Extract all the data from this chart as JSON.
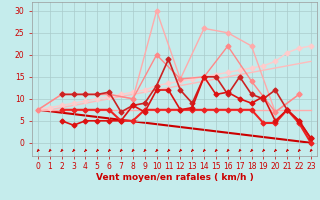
{
  "xlabel": "Vent moyen/en rafales ( km/h )",
  "background_color": "#c5ecec",
  "grid_color": "#aacccc",
  "x_ticks": [
    0,
    1,
    2,
    3,
    4,
    5,
    6,
    7,
    8,
    9,
    10,
    11,
    12,
    13,
    14,
    15,
    16,
    17,
    18,
    19,
    20,
    21,
    22,
    23
  ],
  "ylim": [
    -3,
    32
  ],
  "xlim": [
    -0.5,
    23.5
  ],
  "yticks": [
    0,
    5,
    10,
    15,
    20,
    25,
    30
  ],
  "lines": [
    {
      "x": [
        0,
        1,
        2,
        3,
        4,
        5,
        6,
        7,
        8,
        9,
        10,
        11,
        12,
        13,
        14,
        15,
        16,
        17,
        18,
        19,
        20,
        21,
        22,
        23
      ],
      "y": [
        7.5,
        7.5,
        7.5,
        7.5,
        7.5,
        7.5,
        7.5,
        7.5,
        7.5,
        7.5,
        7.5,
        7.5,
        7.5,
        7.5,
        7.5,
        7.5,
        7.5,
        7.5,
        7.5,
        7.5,
        7.5,
        7.5,
        7.5,
        7.5
      ],
      "color": "#ffaaaa",
      "linewidth": 1.0,
      "marker": null,
      "markersize": 0,
      "zorder": 2
    },
    {
      "x": [
        0,
        1,
        2,
        3,
        4,
        5,
        6,
        7,
        8,
        9,
        10,
        11,
        12,
        13,
        14,
        15,
        16,
        17,
        18,
        19,
        20,
        21,
        22,
        23
      ],
      "y": [
        7.5,
        7.5,
        8.0,
        8.5,
        9.0,
        9.5,
        10.0,
        10.5,
        11.0,
        11.5,
        12.0,
        12.5,
        13.0,
        13.5,
        14.0,
        14.5,
        15.0,
        15.5,
        16.0,
        16.5,
        17.0,
        17.5,
        18.0,
        18.5
      ],
      "color": "#ffbbbb",
      "linewidth": 1.0,
      "marker": null,
      "markersize": 0,
      "zorder": 2
    },
    {
      "x": [
        0,
        1,
        2,
        3,
        4,
        5,
        6,
        7,
        8,
        9,
        10,
        11,
        12,
        13,
        14,
        15,
        16,
        17,
        18,
        19,
        20,
        21,
        22,
        23
      ],
      "y": [
        7.5,
        8.0,
        8.5,
        9.0,
        9.5,
        10.0,
        10.5,
        11.0,
        11.5,
        12.0,
        13.0,
        13.5,
        14.0,
        14.5,
        15.0,
        15.5,
        16.0,
        16.5,
        17.0,
        17.5,
        18.5,
        20.5,
        21.5,
        22.0
      ],
      "color": "#ffcccc",
      "linewidth": 1.0,
      "marker": "D",
      "markersize": 2.5,
      "zorder": 2
    },
    {
      "x": [
        0,
        2,
        4,
        6,
        8,
        10,
        12,
        14,
        16,
        18,
        20,
        22
      ],
      "y": [
        7.5,
        11,
        11,
        11,
        10,
        30,
        14.5,
        26,
        25,
        22,
        7,
        11
      ],
      "color": "#ffaaaa",
      "linewidth": 1.0,
      "marker": "D",
      "markersize": 2.5,
      "zorder": 2
    },
    {
      "x": [
        0,
        2,
        4,
        6,
        8,
        10,
        12,
        14,
        16,
        18,
        20,
        22
      ],
      "y": [
        7.5,
        11,
        11,
        11,
        10,
        20,
        14.5,
        15,
        22,
        14,
        7,
        11
      ],
      "color": "#ff8888",
      "linewidth": 1.0,
      "marker": "D",
      "markersize": 2.5,
      "zorder": 3
    },
    {
      "x": [
        2,
        3,
        4,
        5,
        6,
        7,
        8,
        9,
        10,
        11,
        12,
        13,
        14,
        15,
        16,
        17,
        18,
        19,
        20,
        21,
        22,
        23
      ],
      "y": [
        11,
        11,
        11,
        11,
        11.5,
        7,
        8.5,
        9,
        13,
        19,
        12,
        9,
        15,
        15,
        11,
        15,
        11,
        10,
        12,
        7.5,
        5,
        1
      ],
      "color": "#cc2222",
      "linewidth": 1.2,
      "marker": "D",
      "markersize": 2.5,
      "zorder": 4
    },
    {
      "x": [
        2,
        3,
        4,
        5,
        6,
        7,
        8,
        9,
        10,
        11,
        12,
        13,
        14,
        15,
        16,
        17,
        18,
        19,
        20,
        21,
        22,
        23
      ],
      "y": [
        5,
        4,
        5,
        5,
        5,
        5,
        8.5,
        7,
        12,
        12,
        7.5,
        8,
        15,
        11,
        11.5,
        10,
        9,
        10.5,
        5,
        7.5,
        5,
        1
      ],
      "color": "#dd1111",
      "linewidth": 1.2,
      "marker": "D",
      "markersize": 2.5,
      "zorder": 4
    },
    {
      "x": [
        2,
        3,
        4,
        5,
        6,
        7,
        8,
        9,
        10,
        11,
        12,
        13,
        14,
        15,
        16,
        17,
        18,
        19,
        20,
        21,
        22,
        23
      ],
      "y": [
        7.5,
        7.5,
        7.5,
        7.5,
        7.5,
        5,
        5,
        7.5,
        7.5,
        7.5,
        7.5,
        7.5,
        7.5,
        7.5,
        7.5,
        7.5,
        7.5,
        4.5,
        4.5,
        7.5,
        4.5,
        0
      ],
      "color": "#ee2222",
      "linewidth": 1.5,
      "marker": "D",
      "markersize": 2.5,
      "zorder": 3
    },
    {
      "x": [
        0,
        23
      ],
      "y": [
        7.5,
        0
      ],
      "color": "#cc0000",
      "linewidth": 1.5,
      "marker": null,
      "markersize": 0,
      "zorder": 1
    }
  ],
  "wind_arrows_x": [
    0,
    1,
    2,
    3,
    4,
    5,
    6,
    7,
    8,
    9,
    10,
    11,
    12,
    13,
    14,
    15,
    16,
    17,
    18,
    19,
    20,
    21,
    22,
    23
  ],
  "wind_arrow_color": "#cc0000",
  "tick_color": "#cc0000",
  "tick_fontsize": 5.5,
  "xlabel_fontsize": 6.5,
  "xlabel_color": "#cc0000"
}
